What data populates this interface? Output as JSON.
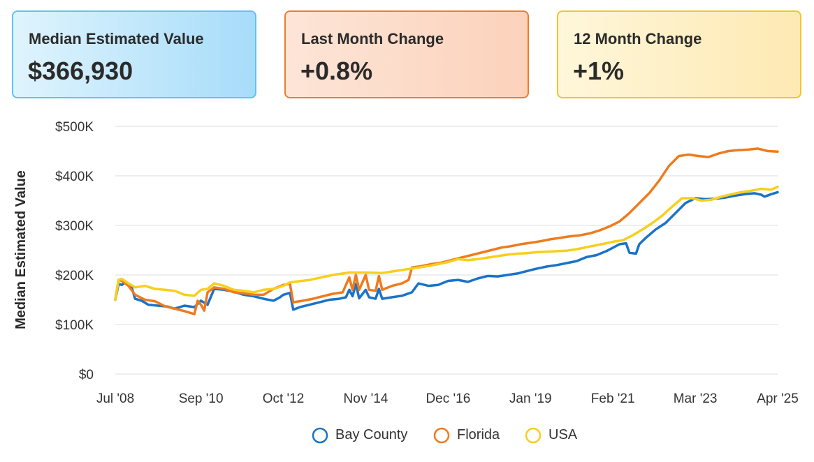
{
  "cards": [
    {
      "title": "Median Estimated Value",
      "value": "$366,930"
    },
    {
      "title": "Last Month Change",
      "value": "+0.8%"
    },
    {
      "title": "12 Month Change",
      "value": "+1%"
    }
  ],
  "colors": {
    "bay_county": "#1a73c8",
    "florida": "#ee7b1d",
    "usa": "#f7cf1c",
    "grid": "#dcdcdc"
  },
  "chart_data": {
    "type": "line",
    "title": "",
    "ylabel": "Median Estimated Value",
    "xlabel": "",
    "ylim": [
      0,
      500000
    ],
    "xlim": [
      "2008-07",
      "2025-04"
    ],
    "yticks": [
      {
        "value": 0,
        "label": "$0"
      },
      {
        "value": 100000,
        "label": "$100K"
      },
      {
        "value": 200000,
        "label": "$200K"
      },
      {
        "value": 300000,
        "label": "$300K"
      },
      {
        "value": 400000,
        "label": "$400K"
      },
      {
        "value": 500000,
        "label": "$500K"
      }
    ],
    "xticks": [
      {
        "date": "2008-07",
        "label": "Jul '08"
      },
      {
        "date": "2010-09",
        "label": "Sep '10"
      },
      {
        "date": "2012-10",
        "label": "Oct '12"
      },
      {
        "date": "2014-11",
        "label": "Nov '14"
      },
      {
        "date": "2016-12",
        "label": "Dec '16"
      },
      {
        "date": "2019-01",
        "label": "Jan '19"
      },
      {
        "date": "2021-02",
        "label": "Feb '21"
      },
      {
        "date": "2023-03",
        "label": "Mar '23"
      },
      {
        "date": "2025-04",
        "label": "Apr '25"
      }
    ],
    "grid": true,
    "legend_position": "bottom",
    "series": [
      {
        "name": "Bay County",
        "color_key": "bay_county",
        "points": [
          [
            "2008-07",
            150000
          ],
          [
            "2008-08",
            182000
          ],
          [
            "2008-09",
            180000
          ],
          [
            "2008-10",
            185000
          ],
          [
            "2008-12",
            175000
          ],
          [
            "2009-01",
            152000
          ],
          [
            "2009-03",
            148000
          ],
          [
            "2009-05",
            140000
          ],
          [
            "2009-08",
            138000
          ],
          [
            "2009-11",
            136000
          ],
          [
            "2010-01",
            132000
          ],
          [
            "2010-04",
            138000
          ],
          [
            "2010-07",
            135000
          ],
          [
            "2010-09",
            148000
          ],
          [
            "2010-11",
            140000
          ],
          [
            "2011-01",
            172000
          ],
          [
            "2011-04",
            170000
          ],
          [
            "2011-07",
            166000
          ],
          [
            "2011-10",
            160000
          ],
          [
            "2012-01",
            157000
          ],
          [
            "2012-04",
            152000
          ],
          [
            "2012-07",
            148000
          ],
          [
            "2012-09",
            155000
          ],
          [
            "2012-10",
            160000
          ],
          [
            "2012-12",
            164000
          ],
          [
            "2013-01",
            130000
          ],
          [
            "2013-03",
            135000
          ],
          [
            "2013-06",
            140000
          ],
          [
            "2013-09",
            145000
          ],
          [
            "2013-12",
            150000
          ],
          [
            "2014-03",
            152000
          ],
          [
            "2014-05",
            155000
          ],
          [
            "2014-06",
            170000
          ],
          [
            "2014-07",
            157000
          ],
          [
            "2014-08",
            182000
          ],
          [
            "2014-09",
            153000
          ],
          [
            "2014-11",
            170000
          ],
          [
            "2014-12",
            155000
          ],
          [
            "2015-02",
            152000
          ],
          [
            "2015-03",
            172000
          ],
          [
            "2015-04",
            152000
          ],
          [
            "2015-07",
            155000
          ],
          [
            "2015-10",
            158000
          ],
          [
            "2016-01",
            165000
          ],
          [
            "2016-03",
            183000
          ],
          [
            "2016-06",
            178000
          ],
          [
            "2016-09",
            180000
          ],
          [
            "2016-12",
            188000
          ],
          [
            "2017-03",
            190000
          ],
          [
            "2017-06",
            186000
          ],
          [
            "2017-09",
            193000
          ],
          [
            "2017-12",
            198000
          ],
          [
            "2018-03",
            197000
          ],
          [
            "2018-06",
            200000
          ],
          [
            "2018-09",
            203000
          ],
          [
            "2018-12",
            208000
          ],
          [
            "2019-03",
            213000
          ],
          [
            "2019-06",
            217000
          ],
          [
            "2019-09",
            220000
          ],
          [
            "2019-12",
            224000
          ],
          [
            "2020-03",
            228000
          ],
          [
            "2020-06",
            236000
          ],
          [
            "2020-09",
            240000
          ],
          [
            "2020-12",
            248000
          ],
          [
            "2021-02",
            255000
          ],
          [
            "2021-04",
            262000
          ],
          [
            "2021-06",
            264000
          ],
          [
            "2021-07",
            245000
          ],
          [
            "2021-09",
            243000
          ],
          [
            "2021-10",
            262000
          ],
          [
            "2021-12",
            275000
          ],
          [
            "2022-03",
            292000
          ],
          [
            "2022-06",
            305000
          ],
          [
            "2022-09",
            325000
          ],
          [
            "2022-12",
            345000
          ],
          [
            "2023-03",
            355000
          ],
          [
            "2023-06",
            353000
          ],
          [
            "2023-09",
            354000
          ],
          [
            "2023-12",
            356000
          ],
          [
            "2024-03",
            360000
          ],
          [
            "2024-06",
            363000
          ],
          [
            "2024-09",
            365000
          ],
          [
            "2024-11",
            362000
          ],
          [
            "2024-12",
            358000
          ],
          [
            "2025-02",
            363000
          ],
          [
            "2025-04",
            367000
          ]
        ]
      },
      {
        "name": "Florida",
        "color_key": "florida",
        "points": [
          [
            "2008-07",
            150000
          ],
          [
            "2008-08",
            190000
          ],
          [
            "2008-09",
            188000
          ],
          [
            "2008-11",
            178000
          ],
          [
            "2009-01",
            160000
          ],
          [
            "2009-04",
            150000
          ],
          [
            "2009-07",
            147000
          ],
          [
            "2009-10",
            137000
          ],
          [
            "2010-01",
            132000
          ],
          [
            "2010-04",
            127000
          ],
          [
            "2010-07",
            121000
          ],
          [
            "2010-08",
            148000
          ],
          [
            "2010-09",
            140000
          ],
          [
            "2010-10",
            128000
          ],
          [
            "2010-11",
            165000
          ],
          [
            "2011-01",
            175000
          ],
          [
            "2011-04",
            172000
          ],
          [
            "2011-07",
            165000
          ],
          [
            "2011-10",
            163000
          ],
          [
            "2012-01",
            160000
          ],
          [
            "2012-04",
            160000
          ],
          [
            "2012-07",
            172000
          ],
          [
            "2012-10",
            180000
          ],
          [
            "2012-12",
            182000
          ],
          [
            "2013-01",
            145000
          ],
          [
            "2013-04",
            148000
          ],
          [
            "2013-07",
            152000
          ],
          [
            "2013-10",
            157000
          ],
          [
            "2014-01",
            162000
          ],
          [
            "2014-04",
            165000
          ],
          [
            "2014-06",
            195000
          ],
          [
            "2014-07",
            170000
          ],
          [
            "2014-08",
            200000
          ],
          [
            "2014-09",
            170000
          ],
          [
            "2014-11",
            200000
          ],
          [
            "2014-12",
            170000
          ],
          [
            "2015-02",
            168000
          ],
          [
            "2015-03",
            198000
          ],
          [
            "2015-04",
            170000
          ],
          [
            "2015-07",
            178000
          ],
          [
            "2015-10",
            183000
          ],
          [
            "2015-12",
            190000
          ],
          [
            "2016-01",
            215000
          ],
          [
            "2016-04",
            218000
          ],
          [
            "2016-07",
            222000
          ],
          [
            "2016-10",
            225000
          ],
          [
            "2017-01",
            230000
          ],
          [
            "2017-04",
            235000
          ],
          [
            "2017-07",
            240000
          ],
          [
            "2017-10",
            245000
          ],
          [
            "2018-01",
            250000
          ],
          [
            "2018-04",
            255000
          ],
          [
            "2018-07",
            258000
          ],
          [
            "2018-10",
            262000
          ],
          [
            "2019-01",
            265000
          ],
          [
            "2019-04",
            268000
          ],
          [
            "2019-07",
            272000
          ],
          [
            "2019-10",
            275000
          ],
          [
            "2020-01",
            278000
          ],
          [
            "2020-04",
            280000
          ],
          [
            "2020-07",
            284000
          ],
          [
            "2020-10",
            290000
          ],
          [
            "2021-01",
            298000
          ],
          [
            "2021-04",
            308000
          ],
          [
            "2021-07",
            325000
          ],
          [
            "2021-10",
            345000
          ],
          [
            "2022-01",
            365000
          ],
          [
            "2022-04",
            390000
          ],
          [
            "2022-07",
            420000
          ],
          [
            "2022-10",
            440000
          ],
          [
            "2023-01",
            443000
          ],
          [
            "2023-04",
            440000
          ],
          [
            "2023-07",
            438000
          ],
          [
            "2023-10",
            445000
          ],
          [
            "2024-01",
            450000
          ],
          [
            "2024-04",
            452000
          ],
          [
            "2024-07",
            453000
          ],
          [
            "2024-10",
            455000
          ],
          [
            "2025-01",
            450000
          ],
          [
            "2025-04",
            449000
          ]
        ]
      },
      {
        "name": "USA",
        "color_key": "usa",
        "points": [
          [
            "2008-07",
            150000
          ],
          [
            "2008-08",
            190000
          ],
          [
            "2008-09",
            192000
          ],
          [
            "2008-11",
            183000
          ],
          [
            "2009-01",
            175000
          ],
          [
            "2009-04",
            178000
          ],
          [
            "2009-07",
            172000
          ],
          [
            "2009-10",
            170000
          ],
          [
            "2010-01",
            168000
          ],
          [
            "2010-04",
            160000
          ],
          [
            "2010-07",
            158000
          ],
          [
            "2010-09",
            170000
          ],
          [
            "2010-11",
            172000
          ],
          [
            "2011-01",
            183000
          ],
          [
            "2011-04",
            178000
          ],
          [
            "2011-07",
            170000
          ],
          [
            "2011-10",
            168000
          ],
          [
            "2012-01",
            165000
          ],
          [
            "2012-04",
            170000
          ],
          [
            "2012-07",
            172000
          ],
          [
            "2012-10",
            178000
          ],
          [
            "2012-12",
            185000
          ],
          [
            "2013-06",
            190000
          ],
          [
            "2014-01",
            200000
          ],
          [
            "2014-06",
            205000
          ],
          [
            "2014-11",
            205000
          ],
          [
            "2015-04",
            204000
          ],
          [
            "2015-10",
            210000
          ],
          [
            "2016-03",
            215000
          ],
          [
            "2016-06",
            218000
          ],
          [
            "2016-09",
            222000
          ],
          [
            "2016-12",
            226000
          ],
          [
            "2017-03",
            232000
          ],
          [
            "2017-06",
            230000
          ],
          [
            "2017-09",
            232000
          ],
          [
            "2017-12",
            235000
          ],
          [
            "2018-03",
            238000
          ],
          [
            "2018-06",
            241000
          ],
          [
            "2018-09",
            243000
          ],
          [
            "2018-12",
            244000
          ],
          [
            "2019-03",
            246000
          ],
          [
            "2019-06",
            247000
          ],
          [
            "2019-09",
            248000
          ],
          [
            "2019-12",
            249000
          ],
          [
            "2020-03",
            252000
          ],
          [
            "2020-06",
            256000
          ],
          [
            "2020-09",
            260000
          ],
          [
            "2020-12",
            264000
          ],
          [
            "2021-02",
            267000
          ],
          [
            "2021-05",
            270000
          ],
          [
            "2021-08",
            280000
          ],
          [
            "2021-11",
            292000
          ],
          [
            "2022-02",
            305000
          ],
          [
            "2022-05",
            320000
          ],
          [
            "2022-08",
            338000
          ],
          [
            "2022-11",
            355000
          ],
          [
            "2023-02",
            355000
          ],
          [
            "2023-05",
            350000
          ],
          [
            "2023-08",
            352000
          ],
          [
            "2023-11",
            358000
          ],
          [
            "2024-02",
            363000
          ],
          [
            "2024-05",
            367000
          ],
          [
            "2024-08",
            370000
          ],
          [
            "2024-11",
            374000
          ],
          [
            "2025-02",
            372000
          ],
          [
            "2025-04",
            378000
          ]
        ]
      }
    ]
  }
}
